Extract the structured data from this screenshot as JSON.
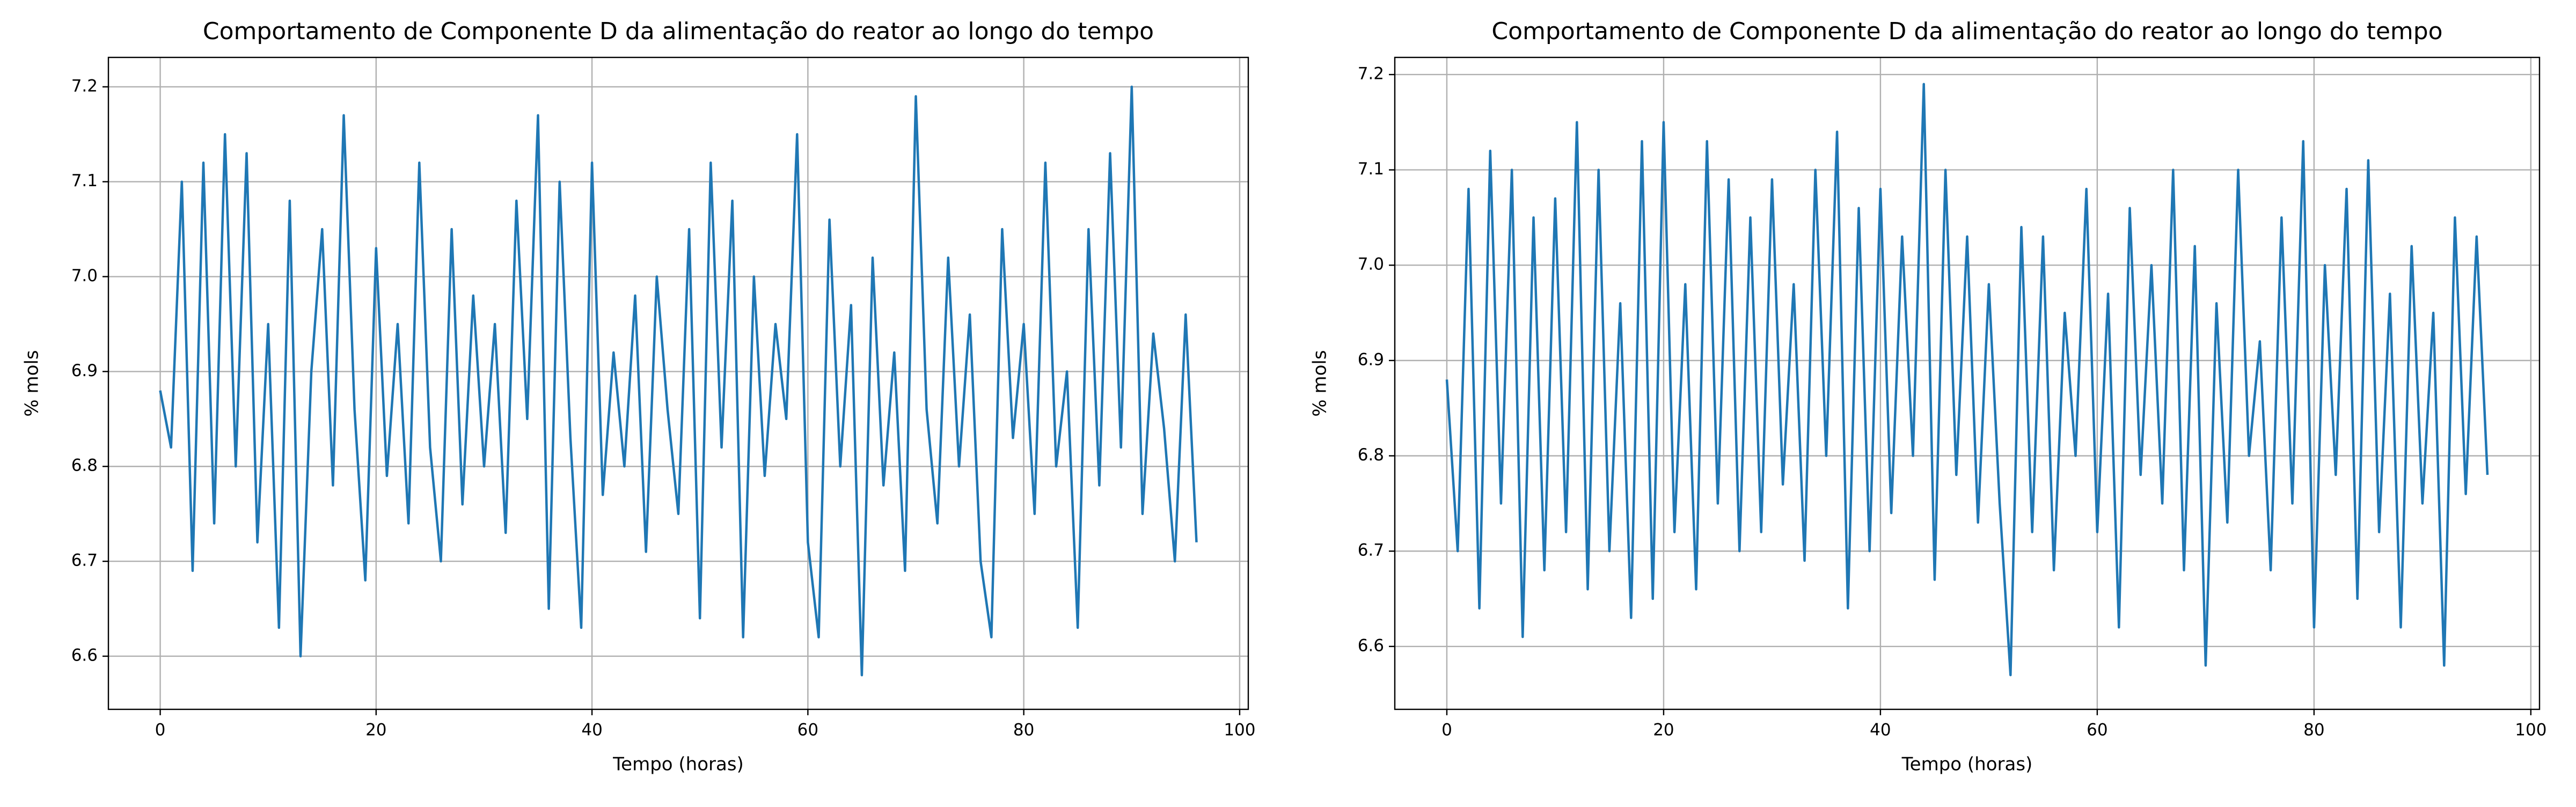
{
  "chart_data": [
    {
      "type": "line",
      "title": "Comportamento de Componente D da alimentação do reator ao longo do tempo",
      "xlabel": "Tempo (horas)",
      "ylabel": "% mols",
      "color": "#1f77b4",
      "grid": true,
      "xlim": [
        -4.8,
        100.8
      ],
      "xticks": [
        0,
        20,
        40,
        60,
        80,
        100
      ],
      "ylim": [
        6.544,
        7.231
      ],
      "yticks": [
        6.6,
        6.7,
        6.8,
        6.9,
        {
          "value": 7,
          "label": "7.0"
        },
        7.1,
        7.2
      ],
      "x": [
        0,
        1,
        2,
        3,
        4,
        5,
        6,
        7,
        8,
        9,
        10,
        11,
        12,
        13,
        14,
        15,
        16,
        17,
        18,
        19,
        20,
        21,
        22,
        23,
        24,
        25,
        26,
        27,
        28,
        29,
        30,
        31,
        32,
        33,
        34,
        35,
        36,
        37,
        38,
        39,
        40,
        41,
        42,
        43,
        44,
        45,
        46,
        47,
        48,
        49,
        50,
        51,
        52,
        53,
        54,
        55,
        56,
        57,
        58,
        59,
        60,
        61,
        62,
        63,
        64,
        65,
        66,
        67,
        68,
        69,
        70,
        71,
        72,
        73,
        74,
        75,
        76,
        77,
        78,
        79,
        80,
        81,
        82,
        83,
        84,
        85,
        86,
        87,
        88,
        89,
        90,
        91,
        92,
        93,
        94,
        95,
        96
      ],
      "values": [
        6.88,
        6.82,
        7.1,
        6.69,
        7.12,
        6.74,
        7.15,
        6.8,
        7.13,
        6.72,
        6.95,
        6.63,
        7.08,
        6.6,
        6.9,
        7.05,
        6.78,
        7.17,
        6.86,
        6.68,
        7.03,
        6.79,
        6.95,
        6.74,
        7.12,
        6.82,
        6.7,
        7.05,
        6.76,
        6.98,
        6.8,
        6.95,
        6.73,
        7.08,
        6.85,
        7.17,
        6.65,
        7.1,
        6.83,
        6.63,
        7.12,
        6.77,
        6.92,
        6.8,
        6.98,
        6.71,
        7.0,
        6.86,
        6.75,
        7.05,
        6.64,
        7.12,
        6.82,
        7.08,
        6.62,
        7.0,
        6.79,
        6.95,
        6.85,
        7.15,
        6.72,
        6.62,
        7.06,
        6.8,
        6.97,
        6.58,
        7.02,
        6.78,
        6.92,
        6.69,
        7.19,
        6.86,
        6.74,
        7.02,
        6.8,
        6.96,
        6.7,
        6.62,
        7.05,
        6.83,
        6.95,
        6.75,
        7.12,
        6.8,
        6.9,
        6.63,
        7.05,
        6.78,
        7.13,
        6.82,
        7.2,
        6.75,
        6.94,
        6.84,
        6.7,
        6.96,
        6.72
      ]
    },
    {
      "type": "line",
      "title": "Comportamento de Componente D da alimentação do reator ao longo do tempo",
      "xlabel": "Tempo (horas)",
      "ylabel": "% mols",
      "color": "#1f77b4",
      "grid": true,
      "xlim": [
        -4.8,
        100.8
      ],
      "xticks": [
        0,
        20,
        40,
        60,
        80,
        100
      ],
      "ylim": [
        6.534,
        7.218
      ],
      "yticks": [
        6.6,
        6.7,
        6.8,
        6.9,
        {
          "value": 7,
          "label": "7.0"
        },
        7.1,
        7.2
      ],
      "x": [
        0,
        1,
        2,
        3,
        4,
        5,
        6,
        7,
        8,
        9,
        10,
        11,
        12,
        13,
        14,
        15,
        16,
        17,
        18,
        19,
        20,
        21,
        22,
        23,
        24,
        25,
        26,
        27,
        28,
        29,
        30,
        31,
        32,
        33,
        34,
        35,
        36,
        37,
        38,
        39,
        40,
        41,
        42,
        43,
        44,
        45,
        46,
        47,
        48,
        49,
        50,
        51,
        52,
        53,
        54,
        55,
        56,
        57,
        58,
        59,
        60,
        61,
        62,
        63,
        64,
        65,
        66,
        67,
        68,
        69,
        70,
        71,
        72,
        73,
        74,
        75,
        76,
        77,
        78,
        79,
        80,
        81,
        82,
        83,
        84,
        85,
        86,
        87,
        88,
        89,
        90,
        91,
        92,
        93,
        94,
        95,
        96
      ],
      "values": [
        6.88,
        6.7,
        7.08,
        6.64,
        7.12,
        6.75,
        7.1,
        6.61,
        7.05,
        6.68,
        7.07,
        6.72,
        7.15,
        6.66,
        7.1,
        6.7,
        6.96,
        6.63,
        7.13,
        6.65,
        7.15,
        6.72,
        6.98,
        6.66,
        7.13,
        6.75,
        7.09,
        6.7,
        7.05,
        6.72,
        7.09,
        6.77,
        6.98,
        6.69,
        7.1,
        6.8,
        7.14,
        6.64,
        7.06,
        6.7,
        7.08,
        6.74,
        7.03,
        6.8,
        7.19,
        6.67,
        7.1,
        6.78,
        7.03,
        6.73,
        6.98,
        6.75,
        6.57,
        7.04,
        6.72,
        7.03,
        6.68,
        6.95,
        6.8,
        7.08,
        6.72,
        6.97,
        6.62,
        7.06,
        6.78,
        7.0,
        6.75,
        7.1,
        6.68,
        7.02,
        6.58,
        6.96,
        6.73,
        7.1,
        6.8,
        6.92,
        6.68,
        7.05,
        6.75,
        7.13,
        6.62,
        7.0,
        6.78,
        7.08,
        6.65,
        7.11,
        6.72,
        6.97,
        6.62,
        7.02,
        6.75,
        6.95,
        6.58,
        7.05,
        6.76,
        7.03,
        6.78
      ]
    }
  ]
}
